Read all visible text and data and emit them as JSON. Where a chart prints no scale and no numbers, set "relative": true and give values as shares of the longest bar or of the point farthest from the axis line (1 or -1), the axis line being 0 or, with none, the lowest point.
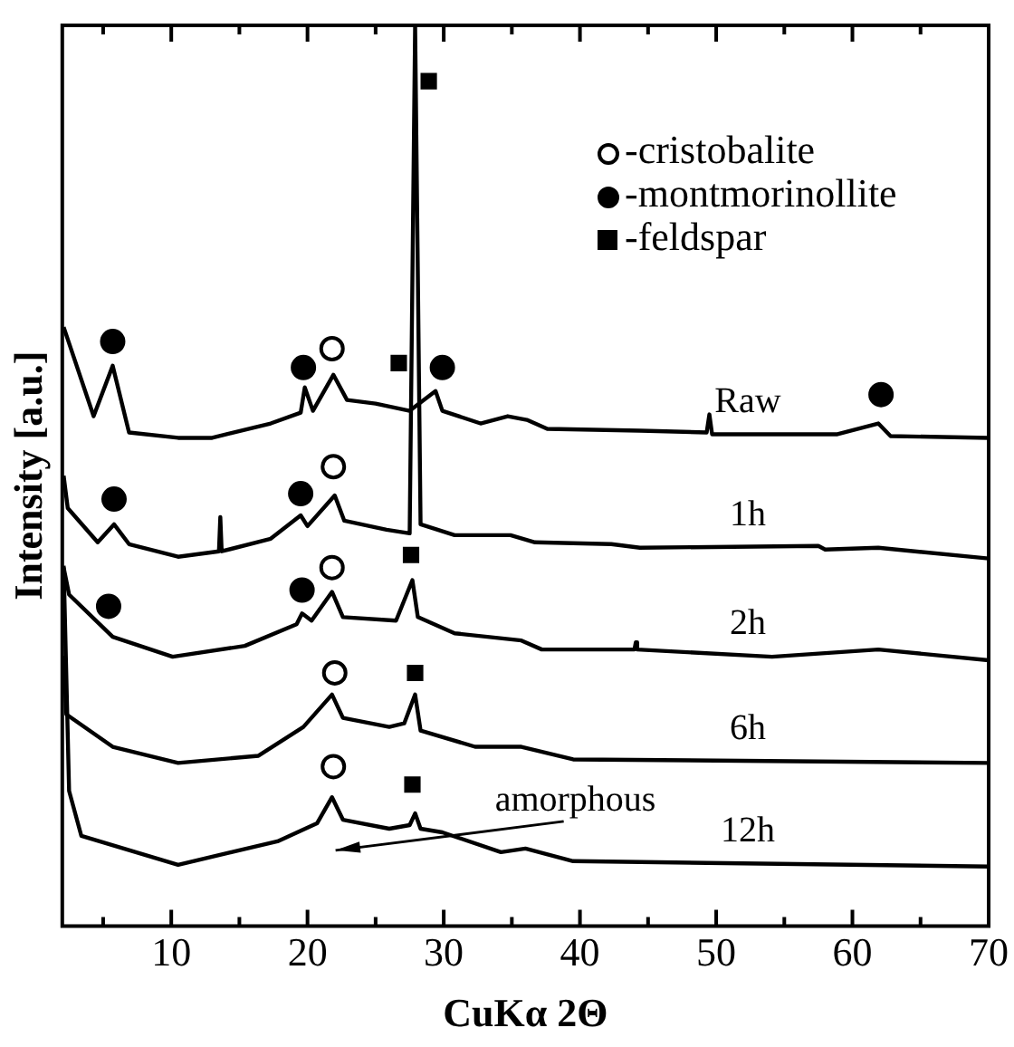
{
  "chart_data": {
    "type": "line",
    "xlabel": "CuKα 2Θ",
    "ylabel": "Intensity [a.u.]",
    "relative": true,
    "xlim": [
      2,
      70
    ],
    "xticks": [
      {
        "value": 5,
        "label": null
      },
      10,
      {
        "value": 15,
        "label": null
      },
      20,
      {
        "value": 25,
        "label": null
      },
      30,
      {
        "value": 35,
        "label": null
      },
      40,
      {
        "value": 45,
        "label": null
      },
      50,
      {
        "value": 55,
        "label": null
      },
      60,
      {
        "value": 65,
        "label": null
      },
      70
    ],
    "grid": false,
    "legend": "top right",
    "line_style": "solid",
    "annotations": [
      "amorphous"
    ],
    "series": [
      {
        "name": "Raw",
        "marker": "none",
        "color": "#000000",
        "x": [
          2.1,
          4.3,
          5.7,
          6.9,
          10.5,
          13,
          17.3,
          19.5,
          19.8,
          20.4,
          21.9,
          22.9,
          25,
          27.5,
          29.4,
          29.9,
          32.7,
          34.7,
          36.1,
          37.6,
          44.4,
          49.3,
          49.5,
          49.7,
          58.9,
          61.9,
          62.8,
          70
        ],
        "values": [
          0.665,
          0.566,
          0.622,
          0.548,
          0.542,
          0.542,
          0.558,
          0.57,
          0.598,
          0.572,
          0.612,
          0.584,
          0.58,
          0.572,
          0.594,
          0.572,
          0.558,
          0.566,
          0.562,
          0.552,
          0.55,
          0.548,
          0.568,
          0.546,
          0.546,
          0.558,
          0.544,
          0.542
        ]
      },
      {
        "name": "1h",
        "marker": "none",
        "color": "#000000",
        "x": [
          2.1,
          2.4,
          4.6,
          5.8,
          6.9,
          10.5,
          13.5,
          13.6,
          13.7,
          17.3,
          19.5,
          20,
          22,
          22.7,
          25.8,
          27.5,
          27.9,
          28.3,
          30.8,
          34.9,
          36.7,
          42.3,
          44.4,
          57.5,
          58,
          61.9,
          70
        ],
        "values": [
          0.5,
          0.464,
          0.426,
          0.446,
          0.424,
          0.41,
          0.416,
          0.454,
          0.416,
          0.43,
          0.456,
          0.444,
          0.478,
          0.45,
          0.44,
          0.436,
          1.0,
          0.446,
          0.434,
          0.434,
          0.426,
          0.424,
          0.42,
          0.422,
          0.418,
          0.42,
          0.408
        ]
      },
      {
        "name": "2h",
        "marker": "none",
        "color": "#000000",
        "x": [
          2.1,
          2.5,
          5.7,
          10.1,
          15.4,
          19.2,
          19.6,
          20.3,
          21.8,
          22.6,
          26.5,
          27.7,
          28.1,
          30.8,
          35.7,
          37.2,
          44,
          44.1,
          44.2,
          54.1,
          61.9,
          70
        ],
        "values": [
          0.398,
          0.368,
          0.321,
          0.299,
          0.311,
          0.335,
          0.347,
          0.339,
          0.371,
          0.343,
          0.339,
          0.384,
          0.343,
          0.325,
          0.317,
          0.307,
          0.307,
          0.315,
          0.307,
          0.299,
          0.307,
          0.295
        ]
      },
      {
        "name": "6h",
        "marker": "none",
        "color": "#000000",
        "x": [
          2.1,
          2.3,
          5.7,
          10.5,
          16.4,
          19.7,
          21.8,
          22.6,
          26,
          27.1,
          27.9,
          28.3,
          32.3,
          35.7,
          39.5,
          70
        ],
        "values": [
          0.3,
          0.235,
          0.199,
          0.181,
          0.189,
          0.221,
          0.257,
          0.231,
          0.221,
          0.225,
          0.257,
          0.217,
          0.199,
          0.199,
          0.185,
          0.181
        ]
      },
      {
        "name": "12h",
        "marker": "none",
        "color": "#000000",
        "x": [
          2.1,
          2.5,
          3.4,
          10.5,
          17.8,
          20.7,
          21.8,
          22.6,
          26,
          27.5,
          27.9,
          28.3,
          29.9,
          34.2,
          36,
          39.5,
          49.3,
          70
        ],
        "values": [
          0.4,
          0.15,
          0.1,
          0.068,
          0.094,
          0.114,
          0.143,
          0.118,
          0.108,
          0.112,
          0.125,
          0.108,
          0.104,
          0.082,
          0.086,
          0.072,
          0.07,
          0.066
        ]
      },
      {
        "name": "-cristobalite",
        "type": "scatter",
        "marker": "circle",
        "color": "#ffffff",
        "x": [
          21.8,
          21.9,
          21.8,
          22,
          21.9
        ],
        "values": [
          0.641,
          0.51,
          0.398,
          0.281,
          0.177
        ]
      },
      {
        "name": "-montmorinollite",
        "type": "scatter",
        "marker": "circle",
        "color": "#000000",
        "x": [
          5.7,
          19.7,
          29.9,
          62.1,
          5.8,
          19.5,
          5.4,
          19.6
        ],
        "values": [
          0.649,
          0.62,
          0.62,
          0.59,
          0.474,
          0.48,
          0.355,
          0.373
        ]
      },
      {
        "name": "-feldspar",
        "type": "scatter",
        "marker": "square",
        "color": "#000000",
        "x": [
          28.9,
          26.7,
          27.6,
          27.9,
          27.7
        ],
        "values": [
          0.938,
          0.625,
          0.412,
          0.281,
          0.157
        ]
      }
    ]
  }
}
